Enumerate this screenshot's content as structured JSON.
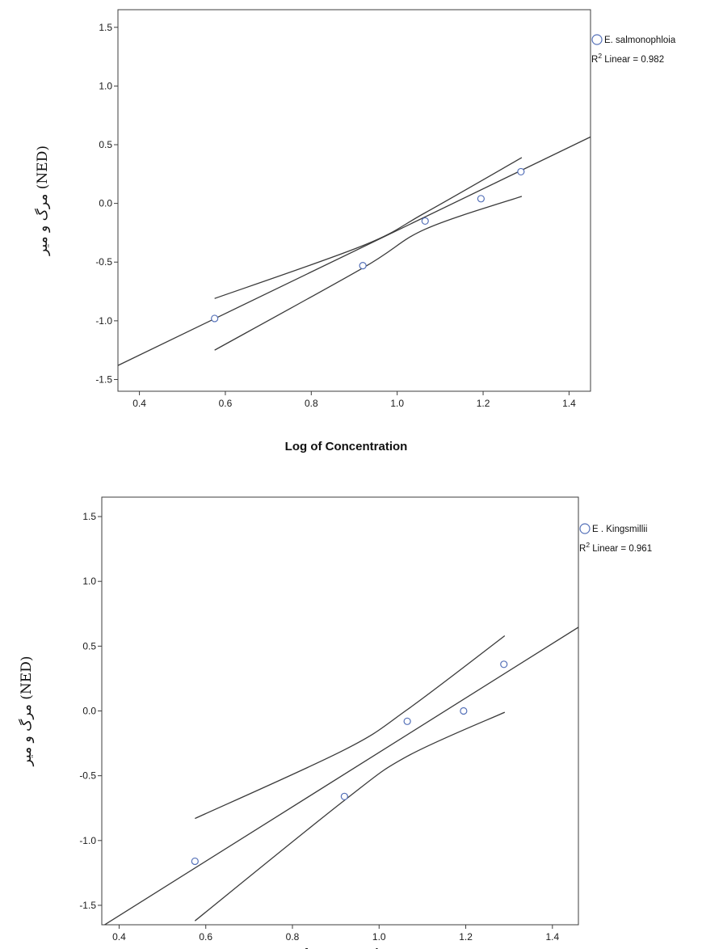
{
  "chart_data": [
    {
      "type": "scatter",
      "xlabel": "Log of Concentration",
      "ylabel": "(NED) مرگ و میر",
      "xlim": [
        0.35,
        1.45
      ],
      "ylim": [
        -1.6,
        1.65
      ],
      "xticks": [
        "0.4",
        "0.6",
        "0.8",
        "1.0",
        "1.2",
        "1.4"
      ],
      "yticks": [
        "1.5",
        "1.0",
        "0.5",
        "0.0",
        "-0.5",
        "-1.0",
        "-1.5"
      ],
      "legend": {
        "position": "top-right",
        "series_label": "E. salmonophloia",
        "r2_prefix": "R",
        "r2_sup": "2",
        "r2_text": " Linear = 0.982"
      },
      "series": [
        {
          "name": "E. salmonophloia",
          "x": [
            0.575,
            0.92,
            1.065,
            1.195,
            1.288
          ],
          "y": [
            -0.98,
            -0.53,
            -0.15,
            0.04,
            0.27
          ]
        }
      ],
      "fit": {
        "slope": 1.77,
        "intercept": -2.0,
        "x_range": [
          0.35,
          1.45
        ]
      },
      "ci": {
        "upper": [
          [
            0.575,
            -0.81
          ],
          [
            0.92,
            -0.36
          ],
          [
            1.065,
            -0.08
          ],
          [
            1.29,
            0.39
          ]
        ],
        "lower": [
          [
            0.575,
            -1.25
          ],
          [
            0.92,
            -0.55
          ],
          [
            1.065,
            -0.22
          ],
          [
            1.29,
            0.06
          ]
        ]
      },
      "grid": false
    },
    {
      "type": "scatter",
      "xlabel": "Log of Concentration",
      "ylabel": "(NED) مرگ و میر",
      "xlim": [
        0.36,
        1.46
      ],
      "ylim": [
        -1.65,
        1.65
      ],
      "xticks": [
        "0.4",
        "0.6",
        "0.8",
        "1.0",
        "1.2",
        "1.4"
      ],
      "yticks": [
        "1.5",
        "1.0",
        "0.5",
        "0.0",
        "-0.5",
        "-1.0",
        "-1.5"
      ],
      "legend": {
        "position": "top-right",
        "series_label": "E . Kingsmillii",
        "r2_prefix": "R",
        "r2_sup": "2",
        "r2_text": " Linear = 0.961"
      },
      "series": [
        {
          "name": "E . Kingsmillii",
          "x": [
            0.575,
            0.92,
            1.065,
            1.195,
            1.288
          ],
          "y": [
            -1.16,
            -0.66,
            -0.08,
            0.0,
            0.36
          ]
        }
      ],
      "fit": {
        "slope": 2.1,
        "intercept": -2.42,
        "x_range": [
          0.36,
          1.46
        ]
      },
      "ci": {
        "upper": [
          [
            0.575,
            -0.83
          ],
          [
            0.92,
            -0.3
          ],
          [
            1.065,
            0.01
          ],
          [
            1.29,
            0.58
          ]
        ],
        "lower": [
          [
            0.575,
            -1.62
          ],
          [
            0.92,
            -0.69
          ],
          [
            1.065,
            -0.35
          ],
          [
            1.29,
            -0.01
          ]
        ]
      },
      "grid": false
    }
  ]
}
